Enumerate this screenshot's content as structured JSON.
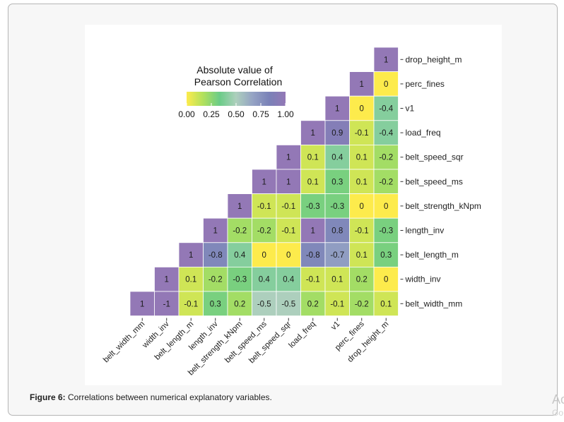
{
  "figure": {
    "caption_label": "Figure 6:",
    "caption_text": " Correlations between numerical explanatory variables.",
    "edge_text": "Ac",
    "edge_text2": "Go"
  },
  "chart_data": {
    "type": "heatmap",
    "title": "",
    "legend": {
      "title_line1": "Absolute value of",
      "title_line2": "Pearson Correlation",
      "ticks": [
        "0.00",
        "0.25",
        "0.50",
        "0.75",
        "1.00"
      ],
      "range": [
        0,
        1
      ],
      "colors": [
        "#fde725",
        "#a0da39",
        "#4ac16d",
        "#9bc5ae",
        "#7e8fb7",
        "#5d66a8",
        "#7b5aa6"
      ],
      "placement": "top-left"
    },
    "x_labels": [
      "belt_width_mm",
      "width_inv",
      "belt_length_m",
      "length_inv",
      "belt_strength_kNpm",
      "belt_speed_ms",
      "belt_speed_sqr",
      "load_freq",
      "v1",
      "perc_fines",
      "drop_height_m"
    ],
    "y_labels": [
      "drop_height_m",
      "perc_fines",
      "v1",
      "load_freq",
      "belt_speed_sqr",
      "belt_speed_ms",
      "belt_strength_kNpm",
      "length_inv",
      "belt_length_m",
      "width_inv",
      "belt_width_mm"
    ],
    "cells": [
      {
        "row": "drop_height_m",
        "values": [
          null,
          null,
          null,
          null,
          null,
          null,
          null,
          null,
          null,
          null,
          1
        ]
      },
      {
        "row": "perc_fines",
        "values": [
          null,
          null,
          null,
          null,
          null,
          null,
          null,
          null,
          null,
          1,
          0
        ]
      },
      {
        "row": "v1",
        "values": [
          null,
          null,
          null,
          null,
          null,
          null,
          null,
          null,
          1,
          0,
          -0.4
        ]
      },
      {
        "row": "load_freq",
        "values": [
          null,
          null,
          null,
          null,
          null,
          null,
          null,
          1,
          0.9,
          -0.1,
          -0.4
        ]
      },
      {
        "row": "belt_speed_sqr",
        "values": [
          null,
          null,
          null,
          null,
          null,
          null,
          1,
          0.1,
          0.4,
          0.1,
          -0.2
        ]
      },
      {
        "row": "belt_speed_ms",
        "values": [
          null,
          null,
          null,
          null,
          null,
          1,
          1,
          0.1,
          0.3,
          0.1,
          -0.2
        ]
      },
      {
        "row": "belt_strength_kNpm",
        "values": [
          null,
          null,
          null,
          null,
          1,
          -0.1,
          -0.1,
          -0.3,
          -0.3,
          0,
          0
        ]
      },
      {
        "row": "length_inv",
        "values": [
          null,
          null,
          null,
          1,
          -0.2,
          -0.2,
          -0.1,
          1,
          0.8,
          -0.1,
          -0.3
        ]
      },
      {
        "row": "belt_length_m",
        "values": [
          null,
          null,
          1,
          -0.8,
          0.4,
          0,
          0,
          -0.8,
          -0.7,
          0.1,
          0.3
        ]
      },
      {
        "row": "width_inv",
        "values": [
          null,
          1,
          0.1,
          -0.2,
          -0.3,
          0.4,
          0.4,
          -0.1,
          0.1,
          0.2,
          0
        ]
      },
      {
        "row": "belt_width_mm",
        "values": [
          1,
          -1,
          -0.1,
          0.3,
          0.2,
          -0.5,
          -0.5,
          0.2,
          -0.1,
          -0.2,
          0.1
        ]
      }
    ]
  }
}
